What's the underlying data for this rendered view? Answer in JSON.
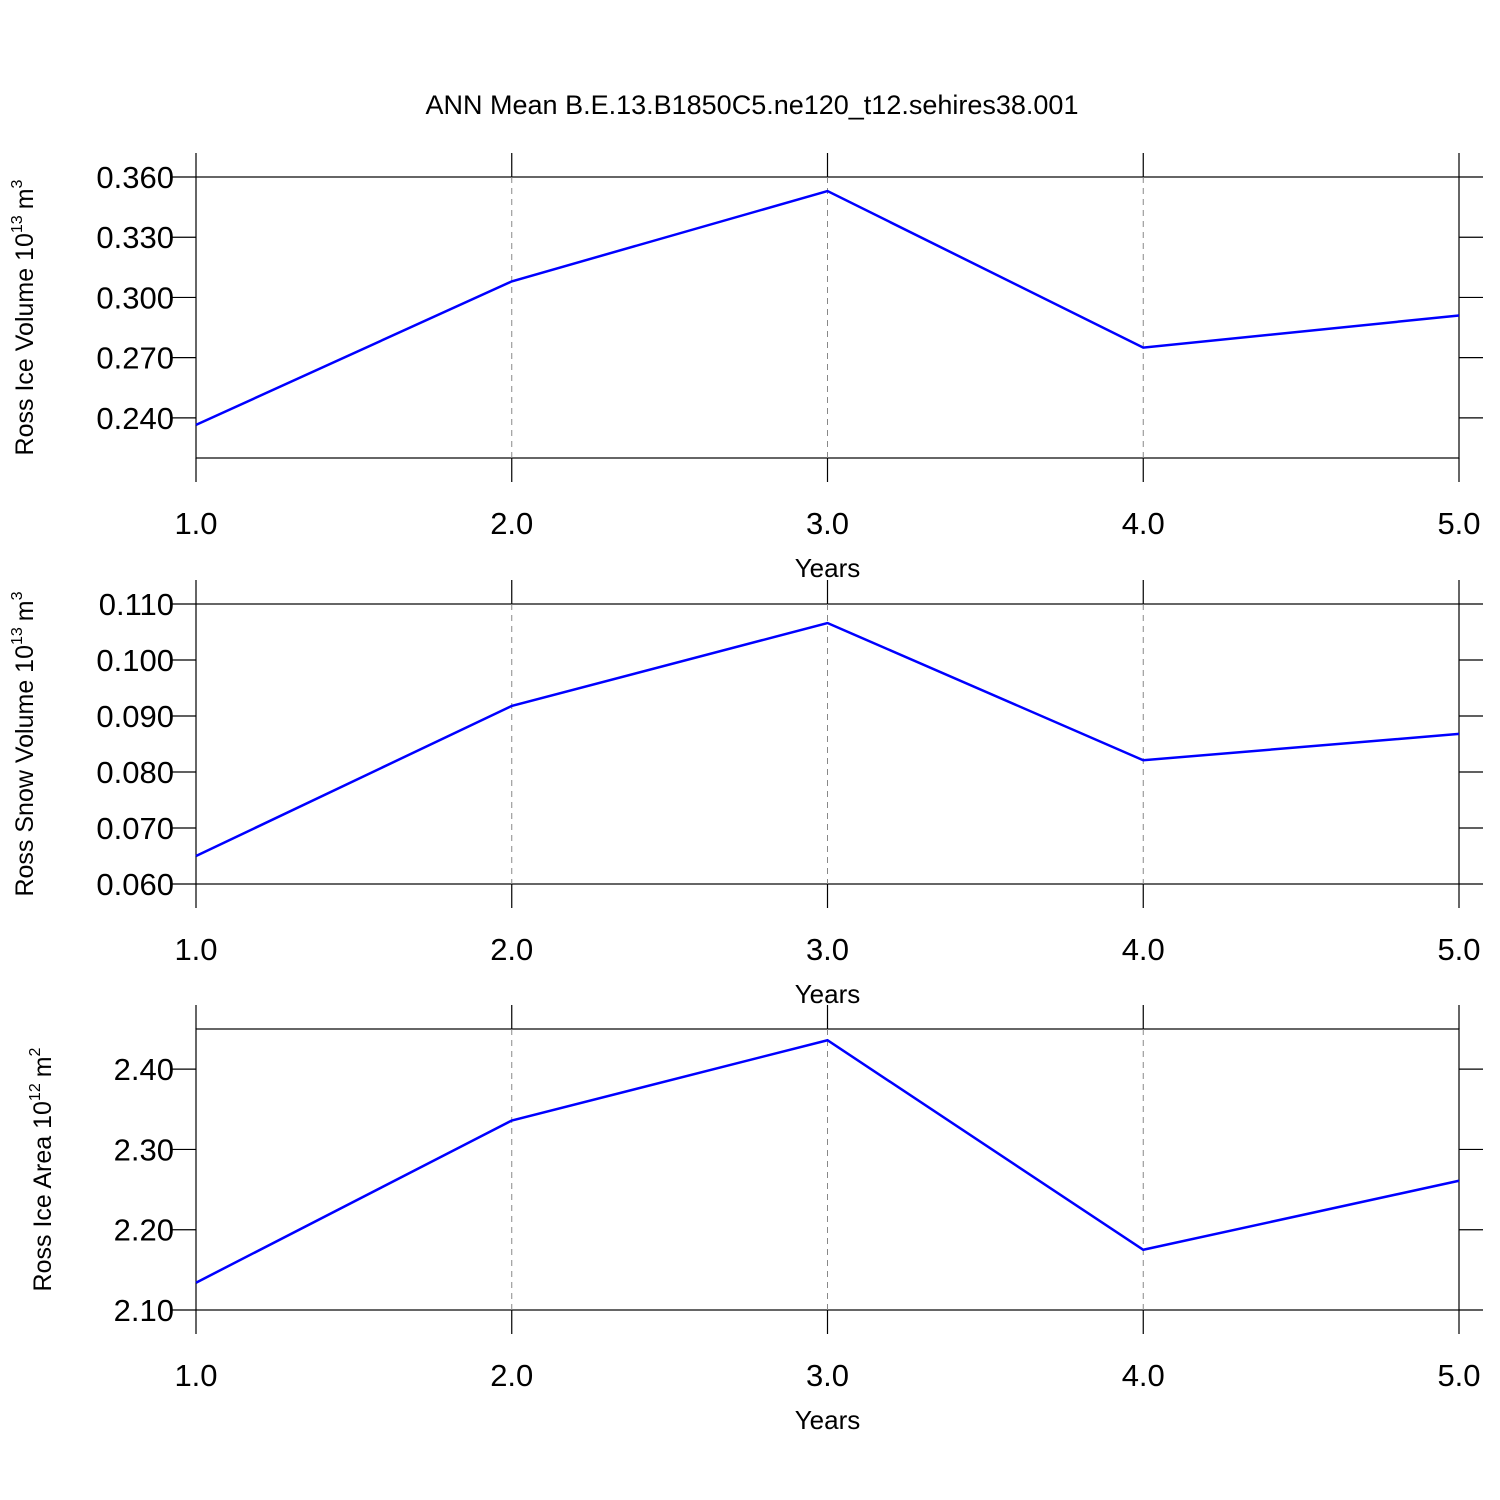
{
  "title": "ANN Mean B.E.13.B1850C5.ne120_t12.sehires38.001",
  "chart_data": [
    {
      "type": "line",
      "ylabel": [
        "Ross Ice Volume 10",
        "13",
        "m",
        "3"
      ],
      "xlabel": "Years",
      "x": [
        1,
        2,
        3,
        4,
        5
      ],
      "values": [
        0.2365,
        0.308,
        0.353,
        0.275,
        0.291
      ],
      "color": "#0000ff",
      "xlim": [
        1,
        5
      ],
      "xticks": [
        {
          "value": 1,
          "label": "1.0"
        },
        {
          "value": 2,
          "label": "2.0"
        },
        {
          "value": 3,
          "label": "3.0"
        },
        {
          "value": 4,
          "label": "4.0"
        },
        {
          "value": 5,
          "label": "5.0"
        }
      ],
      "ylim": [
        0.22,
        0.36
      ],
      "yticks": [
        {
          "value": 0.24,
          "label": "0.240"
        },
        {
          "value": 0.27,
          "label": "0.270"
        },
        {
          "value": 0.3,
          "label": "0.300"
        },
        {
          "value": 0.33,
          "label": "0.330"
        },
        {
          "value": 0.36,
          "label": "0.360"
        }
      ],
      "xgrid": true
    },
    {
      "type": "line",
      "ylabel": [
        "Ross Snow Volume 10",
        "13",
        "m",
        "3"
      ],
      "xlabel": "Years",
      "x": [
        1,
        2,
        3,
        4,
        5
      ],
      "values": [
        0.065,
        0.0918,
        0.1066,
        0.0821,
        0.0868
      ],
      "color": "#0000ff",
      "xlim": [
        1,
        5
      ],
      "xticks": [
        {
          "value": 1,
          "label": "1.0"
        },
        {
          "value": 2,
          "label": "2.0"
        },
        {
          "value": 3,
          "label": "3.0"
        },
        {
          "value": 4,
          "label": "4.0"
        },
        {
          "value": 5,
          "label": "5.0"
        }
      ],
      "ylim": [
        0.06,
        0.11
      ],
      "yticks": [
        {
          "value": 0.06,
          "label": "0.060"
        },
        {
          "value": 0.07,
          "label": "0.070"
        },
        {
          "value": 0.08,
          "label": "0.080"
        },
        {
          "value": 0.09,
          "label": "0.090"
        },
        {
          "value": 0.1,
          "label": "0.100"
        },
        {
          "value": 0.11,
          "label": "0.110"
        }
      ],
      "xgrid": true
    },
    {
      "type": "line",
      "ylabel": [
        "Ross Ice Area 10",
        "12",
        "m",
        "2"
      ],
      "xlabel": "Years",
      "x": [
        1,
        2,
        3,
        4,
        5
      ],
      "values": [
        2.134,
        2.336,
        2.436,
        2.175,
        2.261
      ],
      "color": "#0000ff",
      "xlim": [
        1,
        5
      ],
      "xticks": [
        {
          "value": 1,
          "label": "1.0"
        },
        {
          "value": 2,
          "label": "2.0"
        },
        {
          "value": 3,
          "label": "3.0"
        },
        {
          "value": 4,
          "label": "4.0"
        },
        {
          "value": 5,
          "label": "5.0"
        }
      ],
      "ylim": [
        2.1,
        2.45
      ],
      "yticks": [
        {
          "value": 2.1,
          "label": "2.10"
        },
        {
          "value": 2.2,
          "label": "2.20"
        },
        {
          "value": 2.3,
          "label": "2.30"
        },
        {
          "value": 2.4,
          "label": "2.40"
        }
      ],
      "xgrid": true
    }
  ]
}
